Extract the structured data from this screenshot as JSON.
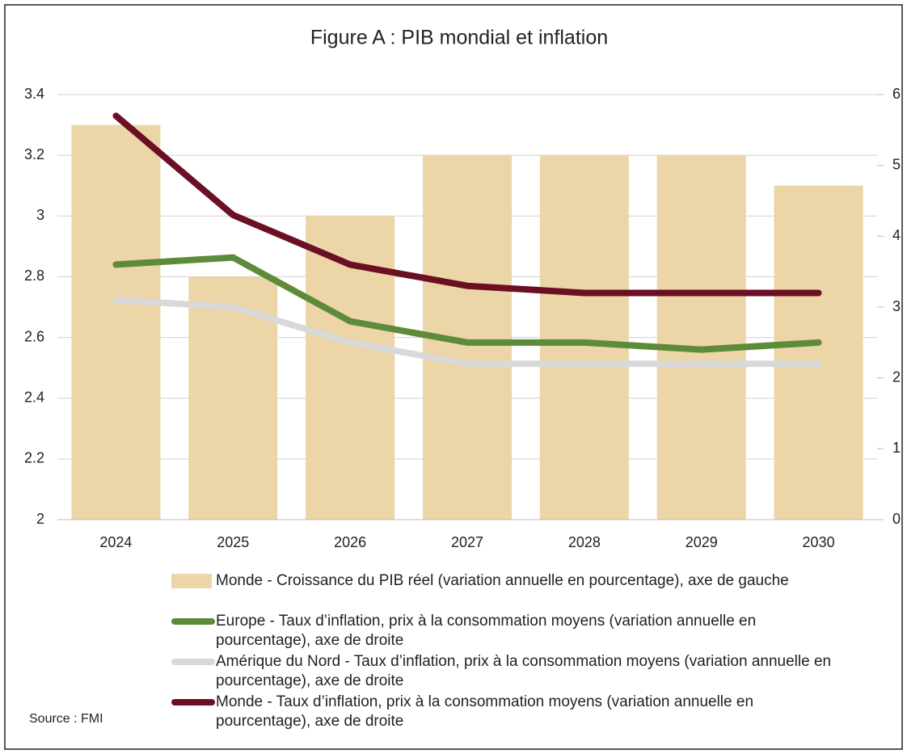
{
  "chart_data": {
    "type": "bar",
    "title": "Figure A : PIB mondial et inflation",
    "categories": [
      "2024",
      "2025",
      "2026",
      "2027",
      "2028",
      "2029",
      "2030"
    ],
    "series": [
      {
        "name": "Monde - Croissance du PIB réel (variation annuelle en pourcentage), axe de gauche",
        "type": "bar",
        "color": "#ecd5a6",
        "values": [
          3.3,
          2.8,
          3.0,
          3.2,
          3.2,
          3.2,
          3.1
        ]
      },
      {
        "name": "Europe - Taux d’inflation, prix à la consommation moyens (variation annuelle en pourcentage), axe de droite",
        "type": "line",
        "axis": "y2",
        "color": "#5e8b3a",
        "values": [
          3.6,
          3.7,
          2.8,
          2.5,
          2.5,
          2.4,
          2.5
        ]
      },
      {
        "name": "Amérique du Nord  - Taux d’inflation, prix à la consommation moyens (variation annuelle en pourcentage), axe de droite",
        "type": "line",
        "axis": "y2",
        "color": "#d9d9d9",
        "values": [
          3.1,
          3.0,
          2.5,
          2.2,
          2.2,
          2.2,
          2.2
        ]
      },
      {
        "name": "Monde - Taux d’inflation, prix à la consommation moyens (variation annuelle en pourcentage), axe de droite",
        "type": "line",
        "axis": "y2",
        "color": "#6b0f25",
        "values": [
          5.7,
          4.3,
          3.6,
          3.3,
          3.2,
          3.2,
          3.2
        ]
      }
    ],
    "ylim": [
      2,
      3.4
    ],
    "yticks": [
      2,
      2.2,
      2.4,
      2.6,
      2.8,
      3,
      3.2,
      3.4
    ],
    "y2lim": [
      0,
      6
    ],
    "y2ticks": [
      0,
      1,
      2,
      3,
      4,
      5,
      6
    ],
    "grid": true,
    "legend": "bottom",
    "source": "Source : FMI"
  }
}
